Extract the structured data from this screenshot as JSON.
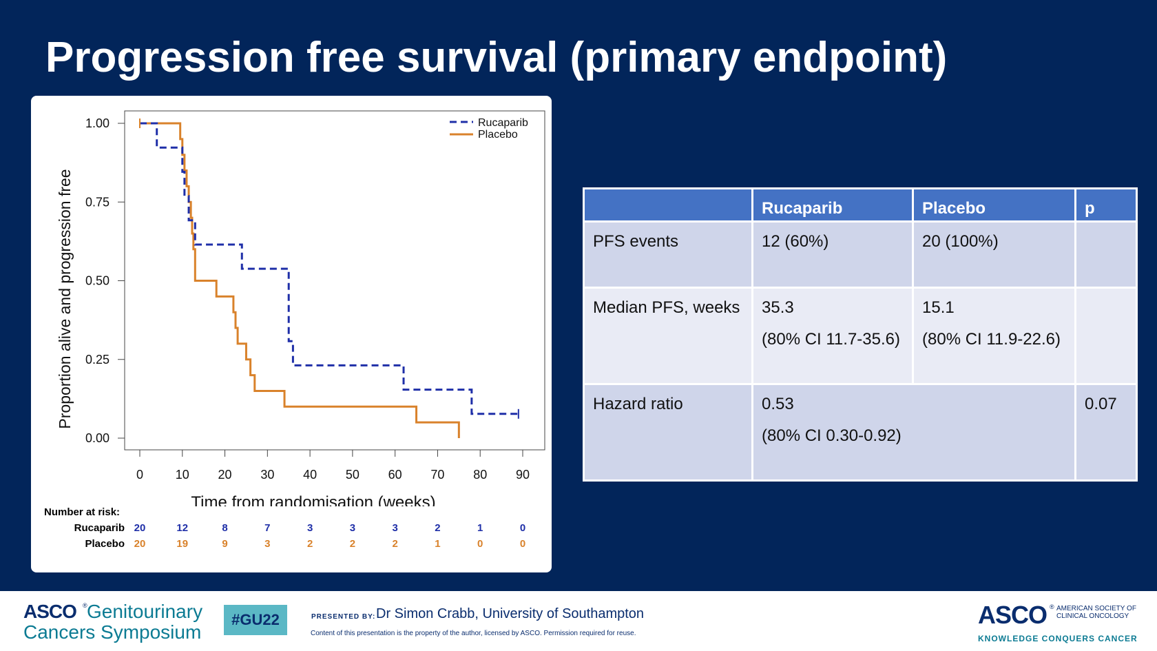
{
  "slide": {
    "title": "Progression free survival (primary endpoint)"
  },
  "colors": {
    "background": "#02255a",
    "rucaparib": "#1f2fa8",
    "placebo": "#d9822b",
    "table_header": "#4472c4",
    "table_row_dark": "#cfd5ea",
    "table_row_light": "#e9ebf5"
  },
  "chart_data": {
    "type": "line",
    "title": "",
    "xlabel": "Time from randomisation (weeks)",
    "ylabel": "Proportion alive and progression free",
    "xlim": [
      0,
      90
    ],
    "ylim": [
      0,
      1
    ],
    "xticks": [
      0,
      10,
      20,
      30,
      40,
      50,
      60,
      70,
      80,
      90
    ],
    "yticks": [
      0,
      0.25,
      0.5,
      0.75,
      1
    ],
    "ytick_labels": [
      "0.00",
      "0.25",
      "0.50",
      "0.75",
      "1.00"
    ],
    "legend_position": "top-right",
    "series": [
      {
        "name": "Rucaparib",
        "style": "dashed",
        "x": [
          0,
          4,
          10,
          10.5,
          11.5,
          12,
          13,
          24,
          35,
          36,
          62,
          78,
          89
        ],
        "y": [
          1,
          0.923,
          0.846,
          0.769,
          0.692,
          0.692,
          0.615,
          0.538,
          0.308,
          0.231,
          0.154,
          0.077,
          0.077
        ],
        "censored": [
          {
            "x": 0,
            "y": 1
          },
          {
            "x": 89,
            "y": 0.077
          }
        ]
      },
      {
        "name": "Placebo",
        "style": "solid",
        "x": [
          0,
          9.5,
          10,
          10.5,
          11,
          11.5,
          12,
          12.3,
          12.6,
          13,
          18,
          22,
          22.5,
          23,
          25,
          26,
          27,
          34,
          65,
          75
        ],
        "y": [
          1,
          0.95,
          0.9,
          0.85,
          0.8,
          0.75,
          0.7,
          0.65,
          0.6,
          0.5,
          0.45,
          0.4,
          0.35,
          0.3,
          0.25,
          0.2,
          0.15,
          0.1,
          0.05,
          0
        ],
        "censored": [
          {
            "x": 0,
            "y": 1
          }
        ]
      }
    ]
  },
  "risk_table": {
    "title": "Number at risk:",
    "times": [
      0,
      10,
      20,
      30,
      40,
      50,
      60,
      70,
      80,
      90
    ],
    "rows": [
      {
        "label": "Rucaparib",
        "values": [
          "20",
          "12",
          "8",
          "7",
          "3",
          "3",
          "3",
          "2",
          "1",
          "0"
        ]
      },
      {
        "label": "Placebo",
        "values": [
          "20",
          "19",
          "9",
          "3",
          "2",
          "2",
          "2",
          "1",
          "0",
          "0"
        ]
      }
    ]
  },
  "table": {
    "headers": [
      "",
      "Rucaparib",
      "Placebo",
      "p"
    ],
    "pfs_events": {
      "label": "PFS events",
      "rucaparib": "12 (60%)",
      "placebo": "20 (100%)",
      "p": ""
    },
    "median_pfs": {
      "label": "Median PFS, weeks",
      "rucaparib": "35.3",
      "rucaparib_ci": "(80% CI 11.7-35.6)",
      "placebo": "15.1",
      "placebo_ci": "(80% CI 11.9-22.6)",
      "p": ""
    },
    "hazard_ratio": {
      "label": "Hazard ratio",
      "value": "0.53",
      "ci": "(80% CI 0.30-0.92)",
      "p": "0.07"
    }
  },
  "footer": {
    "asco_word": "ASCO",
    "reg_mark": "®",
    "meeting_line1": "Genitourinary",
    "meeting_line2": "Cancers Symposium",
    "hashtag": "#GU22",
    "presented_by": "PRESENTED BY:",
    "presenter": "Dr Simon Crabb, University of Southampton",
    "disclaimer": "Content of this presentation is the property of the author, licensed by ASCO. Permission required for reuse.",
    "asco_right": "ASCO",
    "asco_right_sub": "AMERICAN SOCIETY OF CLINICAL ONCOLOGY",
    "asco_tagline": "KNOWLEDGE CONQUERS CANCER"
  }
}
